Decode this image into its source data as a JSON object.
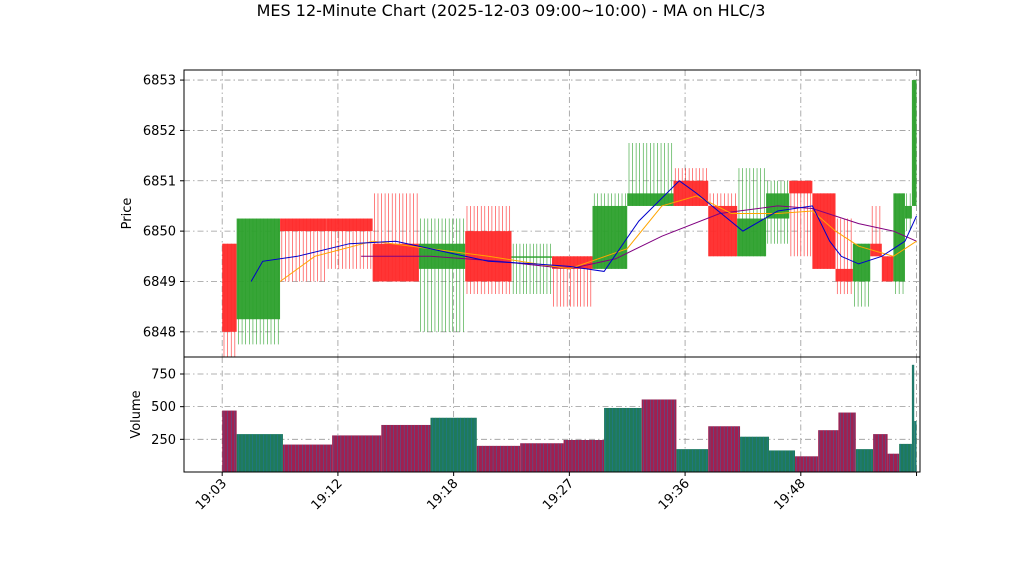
{
  "chart_data": {
    "type": "candlestick",
    "title": "MES 12-Minute Chart (2025-12-03 09:00~10:00) - MA on HLC/3",
    "price_panel": {
      "ylabel": "Price",
      "ylim": [
        6847.5,
        6853.2
      ],
      "yticks": [
        6848,
        6849,
        6850,
        6851,
        6852,
        6853
      ],
      "grid": true,
      "colors": {
        "up": "#2ca02c",
        "down": "#ff2a2a",
        "ma_fast": "#0000cc",
        "ma_mid": "#ffa500",
        "ma_slow": "#800080"
      },
      "candles": [
        {
          "x0": 0.0,
          "x1": 1.25,
          "open": 6849.75,
          "high": 6849.75,
          "low": 6847.5,
          "close": 6848.0
        },
        {
          "x0": 1.25,
          "x1": 5.0,
          "open": 6848.25,
          "high": 6850.25,
          "low": 6847.75,
          "close": 6850.25
        },
        {
          "x0": 5.0,
          "x1": 9.0,
          "open": 6850.25,
          "high": 6850.25,
          "low": 6849.0,
          "close": 6850.0
        },
        {
          "x0": 9.0,
          "x1": 13.0,
          "open": 6850.25,
          "high": 6850.25,
          "low": 6849.25,
          "close": 6850.0
        },
        {
          "x0": 13.0,
          "x1": 17.0,
          "open": 6849.75,
          "high": 6850.75,
          "low": 6849.0,
          "close": 6849.0
        },
        {
          "x0": 17.0,
          "x1": 21.0,
          "open": 6849.25,
          "high": 6850.25,
          "low": 6848.0,
          "close": 6849.75
        },
        {
          "x0": 21.0,
          "x1": 25.0,
          "open": 6850.0,
          "high": 6850.5,
          "low": 6848.75,
          "close": 6849.0
        },
        {
          "x0": 25.0,
          "x1": 28.5,
          "open": 6849.5,
          "high": 6849.75,
          "low": 6848.75,
          "close": 6849.5
        },
        {
          "x0": 28.5,
          "x1": 32.0,
          "open": 6849.5,
          "high": 6849.5,
          "low": 6848.5,
          "close": 6849.25
        },
        {
          "x0": 32.0,
          "x1": 35.0,
          "open": 6849.25,
          "high": 6850.75,
          "low": 6849.25,
          "close": 6850.5
        },
        {
          "x0": 35.0,
          "x1": 39.0,
          "open": 6850.5,
          "high": 6851.75,
          "low": 6850.5,
          "close": 6850.75
        },
        {
          "x0": 39.0,
          "x1": 42.0,
          "open": 6851.0,
          "high": 6851.25,
          "low": 6850.5,
          "close": 6850.5
        },
        {
          "x0": 42.0,
          "x1": 44.5,
          "open": 6850.5,
          "high": 6850.75,
          "low": 6849.5,
          "close": 6849.5
        },
        {
          "x0": 44.5,
          "x1": 47.0,
          "open": 6849.5,
          "high": 6851.25,
          "low": 6849.5,
          "close": 6850.25
        },
        {
          "x0": 47.0,
          "x1": 49.0,
          "open": 6850.25,
          "high": 6851.0,
          "low": 6849.75,
          "close": 6850.75
        },
        {
          "x0": 49.0,
          "x1": 51.0,
          "open": 6851.0,
          "high": 6851.0,
          "low": 6849.5,
          "close": 6850.75
        },
        {
          "x0": 51.0,
          "x1": 53.0,
          "open": 6850.75,
          "high": 6850.75,
          "low": 6849.25,
          "close": 6849.25
        },
        {
          "x0": 53.0,
          "x1": 54.5,
          "open": 6849.25,
          "high": 6850.25,
          "low": 6848.75,
          "close": 6849.0
        },
        {
          "x0": 54.5,
          "x1": 56.0,
          "open": 6849.0,
          "high": 6849.75,
          "low": 6848.5,
          "close": 6849.75
        },
        {
          "x0": 56.0,
          "x1": 57.0,
          "open": 6849.75,
          "high": 6850.5,
          "low": 6849.5,
          "close": 6849.5
        },
        {
          "x0": 57.0,
          "x1": 58.0,
          "open": 6849.5,
          "high": 6849.5,
          "low": 6849.0,
          "close": 6849.0
        },
        {
          "x0": 58.0,
          "x1": 59.0,
          "open": 6849.0,
          "high": 6850.75,
          "low": 6848.75,
          "close": 6850.75
        },
        {
          "x0": 59.0,
          "x1": 59.6,
          "open": 6850.25,
          "high": 6850.75,
          "low": 6850.0,
          "close": 6850.5
        },
        {
          "x0": 59.6,
          "x1": 60.0,
          "open": 6850.5,
          "high": 6853.0,
          "low": 6850.5,
          "close": 6853.0
        }
      ],
      "ma_fast": [
        [
          2.5,
          6849.0
        ],
        [
          3.5,
          6849.4
        ],
        [
          6.5,
          6849.5
        ],
        [
          11,
          6849.75
        ],
        [
          15,
          6849.8
        ],
        [
          19,
          6849.6
        ],
        [
          23,
          6849.4
        ],
        [
          27,
          6849.35
        ],
        [
          30,
          6849.3
        ],
        [
          33,
          6849.2
        ],
        [
          36,
          6850.2
        ],
        [
          39.5,
          6851.0
        ],
        [
          41,
          6850.75
        ],
        [
          45,
          6850.0
        ],
        [
          48,
          6850.4
        ],
        [
          51,
          6850.5
        ],
        [
          52.5,
          6849.8
        ],
        [
          53.5,
          6849.5
        ],
        [
          55,
          6849.35
        ],
        [
          57,
          6849.5
        ],
        [
          59,
          6849.8
        ],
        [
          60,
          6850.3
        ]
      ],
      "ma_mid": [
        [
          5,
          6849.0
        ],
        [
          8,
          6849.5
        ],
        [
          13,
          6849.8
        ],
        [
          18,
          6849.65
        ],
        [
          23,
          6849.5
        ],
        [
          30,
          6849.25
        ],
        [
          35,
          6849.65
        ],
        [
          38,
          6850.5
        ],
        [
          41,
          6850.7
        ],
        [
          44,
          6850.35
        ],
        [
          48,
          6850.35
        ],
        [
          51,
          6850.4
        ],
        [
          53,
          6850.0
        ],
        [
          55,
          6849.7
        ],
        [
          58,
          6849.5
        ],
        [
          60,
          6849.8
        ]
      ],
      "ma_slow": [
        [
          12,
          6849.5
        ],
        [
          18,
          6849.5
        ],
        [
          24,
          6849.4
        ],
        [
          30,
          6849.25
        ],
        [
          34,
          6849.45
        ],
        [
          38,
          6849.9
        ],
        [
          43,
          6850.35
        ],
        [
          48,
          6850.5
        ],
        [
          51,
          6850.45
        ],
        [
          55,
          6850.15
        ],
        [
          58,
          6850.0
        ],
        [
          60,
          6849.8
        ]
      ]
    },
    "volume_panel": {
      "ylabel": "Volume",
      "ylim": [
        0,
        880
      ],
      "yticks": [
        250,
        500,
        750
      ],
      "grid": true,
      "colors": {
        "up": "#1f7a5a",
        "down": "#a02050",
        "edge": "#1f77b4"
      },
      "bars": [
        {
          "x0": 0.0,
          "x1": 1.25,
          "volume": 470,
          "dir": "down"
        },
        {
          "x0": 1.25,
          "x1": 5.25,
          "volume": 290,
          "dir": "up"
        },
        {
          "x0": 5.25,
          "x1": 9.5,
          "volume": 210,
          "dir": "down"
        },
        {
          "x0": 9.5,
          "x1": 13.75,
          "volume": 280,
          "dir": "down"
        },
        {
          "x0": 13.75,
          "x1": 18.0,
          "volume": 360,
          "dir": "down"
        },
        {
          "x0": 18.0,
          "x1": 22.0,
          "volume": 415,
          "dir": "up"
        },
        {
          "x0": 22.0,
          "x1": 25.75,
          "volume": 200,
          "dir": "down"
        },
        {
          "x0": 25.75,
          "x1": 29.5,
          "volume": 220,
          "dir": "down"
        },
        {
          "x0": 29.5,
          "x1": 33.0,
          "volume": 245,
          "dir": "down"
        },
        {
          "x0": 33.0,
          "x1": 36.25,
          "volume": 490,
          "dir": "up"
        },
        {
          "x0": 36.25,
          "x1": 39.25,
          "volume": 555,
          "dir": "down"
        },
        {
          "x0": 39.25,
          "x1": 42.0,
          "volume": 175,
          "dir": "up"
        },
        {
          "x0": 42.0,
          "x1": 44.75,
          "volume": 350,
          "dir": "down"
        },
        {
          "x0": 44.75,
          "x1": 47.25,
          "volume": 270,
          "dir": "up"
        },
        {
          "x0": 47.25,
          "x1": 49.5,
          "volume": 165,
          "dir": "up"
        },
        {
          "x0": 49.5,
          "x1": 51.5,
          "volume": 120,
          "dir": "down"
        },
        {
          "x0": 51.5,
          "x1": 53.25,
          "volume": 320,
          "dir": "down"
        },
        {
          "x0": 53.25,
          "x1": 54.75,
          "volume": 455,
          "dir": "down"
        },
        {
          "x0": 54.75,
          "x1": 56.25,
          "volume": 175,
          "dir": "up"
        },
        {
          "x0": 56.25,
          "x1": 57.5,
          "volume": 290,
          "dir": "down"
        },
        {
          "x0": 57.5,
          "x1": 58.5,
          "volume": 140,
          "dir": "down"
        },
        {
          "x0": 58.5,
          "x1": 59.6,
          "volume": 215,
          "dir": "up"
        },
        {
          "x0": 59.6,
          "x1": 59.8,
          "volume": 820,
          "dir": "up"
        },
        {
          "x0": 59.8,
          "x1": 60.0,
          "volume": 390,
          "dir": "up"
        }
      ]
    },
    "xaxis": {
      "xlim": [
        -3.3,
        60.3
      ],
      "ticks": [
        {
          "pos": 0.0,
          "label": "19:03"
        },
        {
          "pos": 10.0,
          "label": "19:12"
        },
        {
          "pos": 20.0,
          "label": "19:18"
        },
        {
          "pos": 30.0,
          "label": "19:27"
        },
        {
          "pos": 40.0,
          "label": "19:36"
        },
        {
          "pos": 50.0,
          "label": "19:48"
        },
        {
          "pos": 60.0,
          "label": ""
        }
      ]
    }
  }
}
